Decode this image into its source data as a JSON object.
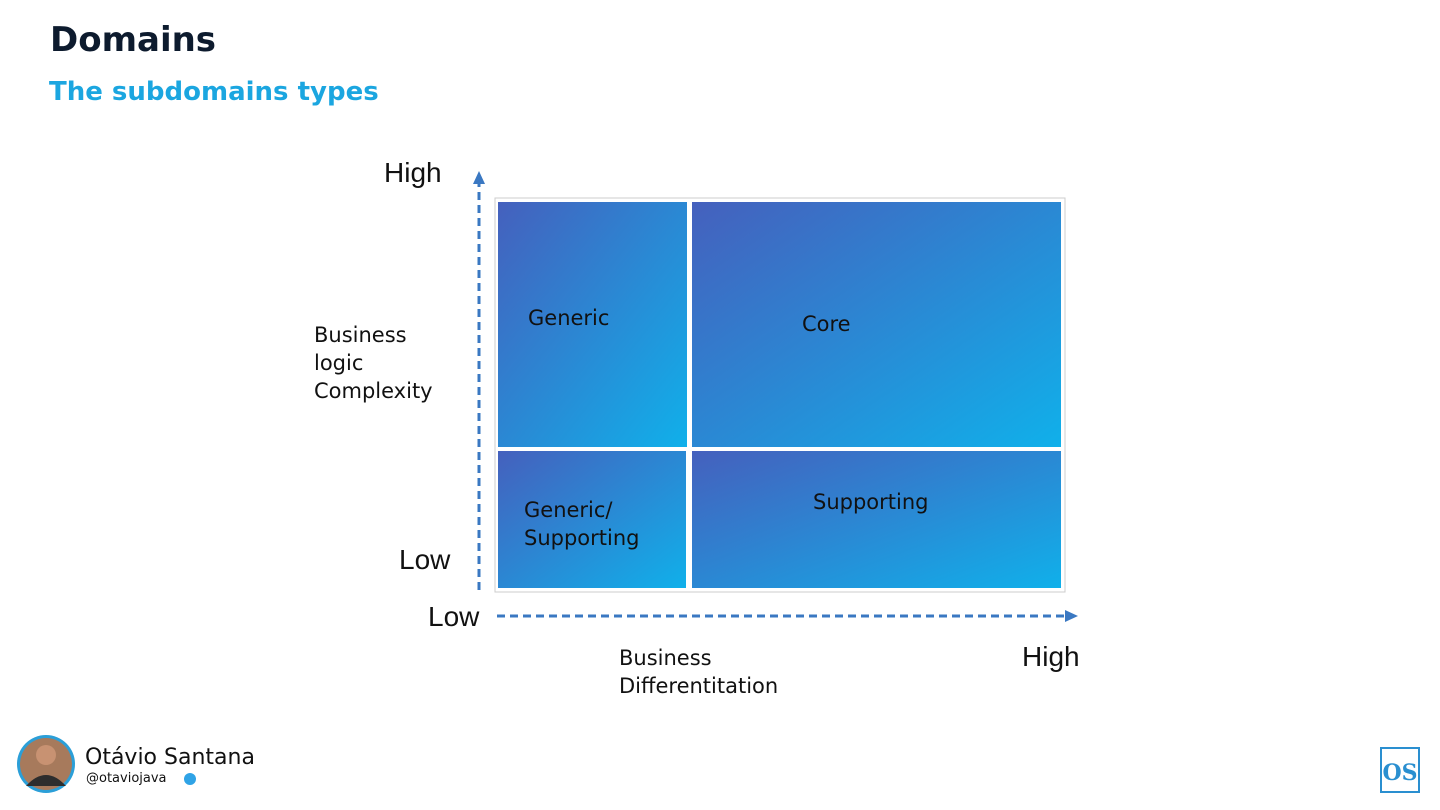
{
  "header": {
    "title": "Domains",
    "subtitle": "The subdomains types"
  },
  "diagram": {
    "y_axis": {
      "high": "High",
      "low": "Low",
      "label_lines": [
        "Business",
        "logic",
        "Complexity"
      ]
    },
    "x_axis": {
      "low": "Low",
      "high": "High",
      "label_lines": [
        "Business",
        "Differentitation"
      ]
    },
    "quadrants": {
      "top_left": {
        "lines": [
          "Generic"
        ]
      },
      "top_right": {
        "lines": [
          "Core"
        ]
      },
      "bottom_left": {
        "lines": [
          "Generic/",
          "Supporting"
        ]
      },
      "bottom_right": {
        "lines": [
          "Supporting"
        ]
      }
    }
  },
  "footer": {
    "author": "Otávio Santana",
    "handle": "@otaviojava",
    "logo": "OS"
  }
}
